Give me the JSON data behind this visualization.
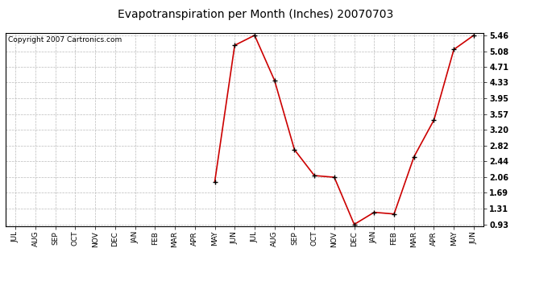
{
  "title": "Evapotranspiration per Month (Inches) 20070703",
  "copyright": "Copyright 2007 Cartronics.com",
  "x_labels": [
    "JUL",
    "AUG",
    "SEP",
    "OCT",
    "NOV",
    "DEC",
    "JAN",
    "FEB",
    "MAR",
    "APR",
    "MAY",
    "JUN",
    "JUL",
    "AUG",
    "SEP",
    "OCT",
    "NOV",
    "DEC",
    "JAN",
    "FEB",
    "MAR",
    "APR",
    "MAY",
    "JUN"
  ],
  "y_values": [
    null,
    null,
    null,
    null,
    null,
    null,
    null,
    null,
    null,
    null,
    1.95,
    5.22,
    5.46,
    4.38,
    2.72,
    2.1,
    2.06,
    0.93,
    1.22,
    1.18,
    2.55,
    3.43,
    5.12,
    5.46
  ],
  "y_ticks": [
    0.93,
    1.31,
    1.69,
    2.06,
    2.44,
    2.82,
    3.2,
    3.57,
    3.95,
    4.33,
    4.71,
    5.08,
    5.46
  ],
  "line_color": "#cc0000",
  "marker": "+",
  "marker_size": 5,
  "marker_color": "#000000",
  "background_color": "#ffffff",
  "plot_bg_color": "#ffffff",
  "grid_color": "#bbbbbb",
  "title_fontsize": 10,
  "copyright_fontsize": 6.5,
  "tick_fontsize": 6.5,
  "ytick_fontsize": 7,
  "ylim_min": 0.93,
  "ylim_max": 5.46
}
